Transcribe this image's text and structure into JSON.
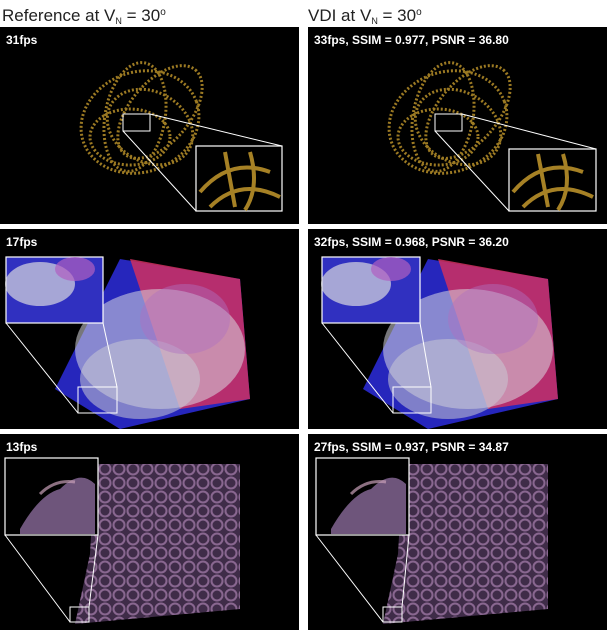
{
  "headers": {
    "left": {
      "text": "Reference at V",
      "sub": "N",
      "eq": " = 30",
      "sup": "o"
    },
    "right": {
      "text": "VDI at V",
      "sub": "N",
      "eq": " = 30",
      "sup": "o"
    }
  },
  "rows": [
    {
      "left_stat": "31fps",
      "right_stat": "33fps, SSIM = 0.977, PSNR = 36.80"
    },
    {
      "left_stat": "17fps",
      "right_stat": "32fps, SSIM = 0.968, PSNR = 36.20"
    },
    {
      "left_stat": "13fps",
      "right_stat": "27fps, SSIM = 0.937, PSNR = 34.87"
    }
  ],
  "colors": {
    "background": "#000000",
    "row1_volume": "#b8902a",
    "row2_smoke": "#d8d8e0",
    "row2_blue": "#2a2ad0",
    "row2_red": "#d03060",
    "row3_volume": "#8a6a9a",
    "inset_frame": "#ffffff"
  }
}
